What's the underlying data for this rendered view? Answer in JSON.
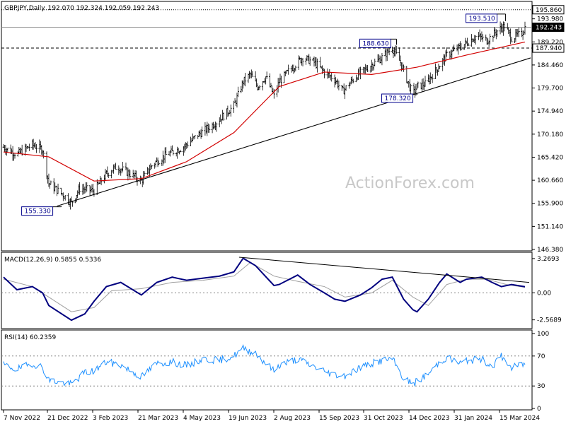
{
  "header": {
    "symbol": "GBPJPY,Daily",
    "ohlc": "192.070 192.324 192.059 192.243",
    "watermark": "ActionForex.com"
  },
  "chart_data": [
    {
      "type": "candlestick",
      "title": "GBPJPY,Daily  192.070 192.324 192.059 192.243",
      "ylim": [
        146.38,
        196.5
      ],
      "y_ticks": [
        "193.980",
        "189.220",
        "184.460",
        "179.700",
        "174.940",
        "170.180",
        "165.420",
        "160.660",
        "155.900",
        "151.140",
        "146.380"
      ],
      "x_ticks": [
        "7 Nov 2022",
        "21 Dec 2022",
        "3 Feb 2023",
        "21 Mar 2023",
        "4 May 2023",
        "19 Jun 2023",
        "2 Aug 2023",
        "15 Sep 2023",
        "31 Oct 2023",
        "14 Dec 2023",
        "31 Jan 2024",
        "15 Mar 2024"
      ],
      "close_path": [
        [
          "2022-11-07",
          167.5
        ],
        [
          "2022-11-20",
          166.0
        ],
        [
          "2022-12-05",
          168.0
        ],
        [
          "2022-12-15",
          167.0
        ],
        [
          "2022-12-21",
          160.0
        ],
        [
          "2023-01-05",
          157.5
        ],
        [
          "2023-01-12",
          156.0
        ],
        [
          "2023-01-20",
          159.0
        ],
        [
          "2023-02-03",
          158.5
        ],
        [
          "2023-02-15",
          162.0
        ],
        [
          "2023-02-25",
          163.5
        ],
        [
          "2023-03-10",
          162.0
        ],
        [
          "2023-03-21",
          160.5
        ],
        [
          "2023-04-01",
          164.0
        ],
        [
          "2023-04-15",
          166.0
        ],
        [
          "2023-05-01",
          167.5
        ],
        [
          "2023-05-15",
          170.0
        ],
        [
          "2023-06-01",
          172.5
        ],
        [
          "2023-06-19",
          176.0
        ],
        [
          "2023-06-28",
          181.0
        ],
        [
          "2023-07-05",
          182.5
        ],
        [
          "2023-07-12",
          180.0
        ],
        [
          "2023-07-20",
          182.0
        ],
        [
          "2023-07-28",
          178.0
        ],
        [
          "2023-08-02",
          181.0
        ],
        [
          "2023-08-15",
          184.0
        ],
        [
          "2023-08-25",
          186.0
        ],
        [
          "2023-09-05",
          185.0
        ],
        [
          "2023-09-15",
          183.0
        ],
        [
          "2023-09-25",
          181.5
        ],
        [
          "2023-10-03",
          179.0
        ],
        [
          "2023-10-15",
          182.0
        ],
        [
          "2023-10-31",
          184.5
        ],
        [
          "2023-11-10",
          186.0
        ],
        [
          "2023-11-20",
          188.0
        ],
        [
          "2023-11-28",
          185.0
        ],
        [
          "2023-12-05",
          181.0
        ],
        [
          "2023-12-10",
          178.32
        ],
        [
          "2023-12-14",
          180.0
        ],
        [
          "2023-12-22",
          180.5
        ],
        [
          "2024-01-02",
          183.5
        ],
        [
          "2024-01-12",
          186.5
        ],
        [
          "2024-01-20",
          187.5
        ],
        [
          "2024-01-31",
          189.0
        ],
        [
          "2024-02-10",
          190.5
        ],
        [
          "2024-02-20",
          189.5
        ],
        [
          "2024-03-01",
          191.5
        ],
        [
          "2024-03-08",
          192.5
        ],
        [
          "2024-03-15",
          190.0
        ],
        [
          "2024-03-25",
          191.0
        ],
        [
          "2024-03-28",
          192.24
        ]
      ],
      "sma_path": [
        [
          "2022-11-07",
          166.5
        ],
        [
          "2022-12-21",
          165.5
        ],
        [
          "2023-02-03",
          160.5
        ],
        [
          "2023-03-21",
          161.0
        ],
        [
          "2023-05-04",
          164.5
        ],
        [
          "2023-06-19",
          170.5
        ],
        [
          "2023-08-02",
          180.0
        ],
        [
          "2023-09-15",
          183.0
        ],
        [
          "2023-10-31",
          182.5
        ],
        [
          "2023-12-14",
          184.0
        ],
        [
          "2024-01-31",
          186.5
        ],
        [
          "2024-03-28",
          189.2
        ]
      ],
      "trendline": [
        [
          "2022-12-29",
          155.33
        ],
        [
          "2024-03-28",
          185.7
        ]
      ],
      "horizontal_lines": [
        {
          "label": "195.860",
          "value": 195.86,
          "style": "dotted"
        },
        {
          "label": "192.243",
          "value": 192.243,
          "style": "solid",
          "current": true
        },
        {
          "label": "187.940",
          "value": 187.94,
          "style": "dashed"
        }
      ],
      "annotations": [
        {
          "text": "155.330",
          "x": "2022-12-29",
          "value": 155.33
        },
        {
          "text": "188.630",
          "x": "2023-11-20",
          "value": 188.63
        },
        {
          "text": "178.320",
          "x": "2023-12-10",
          "value": 178.32
        },
        {
          "text": "193.510",
          "x": "2024-03-05",
          "value": 193.51
        }
      ],
      "series": [
        {
          "name": "GBPJPY",
          "color": "#000000"
        },
        {
          "color": "#d20000"
        }
      ]
    },
    {
      "type": "line",
      "title": "MACD(12,26,9) 0.5855 0.5336",
      "ylim": [
        -3.2,
        3.6
      ],
      "y_ticks": [
        "3.2693",
        "0.00",
        "-2.5689"
      ],
      "zero": 0.0,
      "series": [
        {
          "color": "#00007f",
          "path": [
            [
              "2022-11-07",
              1.5
            ],
            [
              "2022-11-20",
              0.3
            ],
            [
              "2022-12-05",
              0.6
            ],
            [
              "2022-12-15",
              0.0
            ],
            [
              "2022-12-21",
              -1.2
            ],
            [
              "2023-01-12",
              -2.6
            ],
            [
              "2023-01-25",
              -2.0
            ],
            [
              "2023-02-03",
              -0.8
            ],
            [
              "2023-02-15",
              0.6
            ],
            [
              "2023-03-01",
              1.0
            ],
            [
              "2023-03-21",
              -0.2
            ],
            [
              "2023-04-05",
              1.0
            ],
            [
              "2023-04-20",
              1.5
            ],
            [
              "2023-05-04",
              1.2
            ],
            [
              "2023-05-20",
              1.4
            ],
            [
              "2023-06-05",
              1.6
            ],
            [
              "2023-06-19",
              2.0
            ],
            [
              "2023-06-28",
              3.3
            ],
            [
              "2023-07-10",
              2.6
            ],
            [
              "2023-07-28",
              0.7
            ],
            [
              "2023-08-02",
              0.8
            ],
            [
              "2023-08-20",
              1.7
            ],
            [
              "2023-09-01",
              0.8
            ],
            [
              "2023-09-15",
              0.0
            ],
            [
              "2023-09-25",
              -0.6
            ],
            [
              "2023-10-05",
              -0.8
            ],
            [
              "2023-10-20",
              -0.2
            ],
            [
              "2023-10-31",
              0.5
            ],
            [
              "2023-11-10",
              1.3
            ],
            [
              "2023-11-20",
              1.5
            ],
            [
              "2023-12-01",
              -0.6
            ],
            [
              "2023-12-10",
              -1.6
            ],
            [
              "2023-12-14",
              -1.8
            ],
            [
              "2023-12-25",
              -0.6
            ],
            [
              "2024-01-05",
              1.0
            ],
            [
              "2024-01-12",
              1.8
            ],
            [
              "2024-01-25",
              1.0
            ],
            [
              "2024-01-31",
              1.3
            ],
            [
              "2024-02-15",
              1.5
            ],
            [
              "2024-02-25",
              1.0
            ],
            [
              "2024-03-05",
              0.6
            ],
            [
              "2024-03-15",
              0.8
            ],
            [
              "2024-03-28",
              0.59
            ]
          ]
        },
        {
          "color": "#a0a0a0",
          "path": [
            [
              "2022-11-07",
              1.3
            ],
            [
              "2022-12-05",
              0.6
            ],
            [
              "2022-12-21",
              -0.4
            ],
            [
              "2023-01-12",
              -1.8
            ],
            [
              "2023-02-03",
              -1.4
            ],
            [
              "2023-02-20",
              0.2
            ],
            [
              "2023-03-21",
              0.4
            ],
            [
              "2023-04-20",
              1.0
            ],
            [
              "2023-05-20",
              1.2
            ],
            [
              "2023-06-19",
              1.6
            ],
            [
              "2023-07-05",
              2.9
            ],
            [
              "2023-07-28",
              1.6
            ],
            [
              "2023-08-20",
              1.1
            ],
            [
              "2023-09-15",
              0.6
            ],
            [
              "2023-10-05",
              -0.4
            ],
            [
              "2023-10-31",
              0.0
            ],
            [
              "2023-11-20",
              1.2
            ],
            [
              "2023-12-10",
              -0.4
            ],
            [
              "2023-12-25",
              -1.2
            ],
            [
              "2024-01-12",
              0.8
            ],
            [
              "2024-01-31",
              1.3
            ],
            [
              "2024-02-20",
              1.3
            ],
            [
              "2024-03-10",
              0.8
            ],
            [
              "2024-03-28",
              0.53
            ]
          ]
        }
      ],
      "trendline": [
        [
          "2023-06-24",
          3.4
        ],
        [
          "2024-03-28",
          1.0
        ]
      ]
    },
    {
      "type": "line",
      "title": "RSI(14) 60.2359",
      "ylim": [
        0,
        100
      ],
      "y_ticks": [
        "100",
        "70",
        "30",
        "0"
      ],
      "levels": [
        70,
        30
      ],
      "series": [
        {
          "color": "#1e90ff",
          "path": [
            [
              "2022-11-07",
              58
            ],
            [
              "2022-11-20",
              52
            ],
            [
              "2022-12-05",
              60
            ],
            [
              "2022-12-15",
              55
            ],
            [
              "2022-12-21",
              38
            ],
            [
              "2023-01-12",
              32
            ],
            [
              "2023-01-25",
              48
            ],
            [
              "2023-02-03",
              50
            ],
            [
              "2023-02-15",
              62
            ],
            [
              "2023-03-01",
              58
            ],
            [
              "2023-03-21",
              42
            ],
            [
              "2023-04-05",
              60
            ],
            [
              "2023-04-20",
              62
            ],
            [
              "2023-05-04",
              57
            ],
            [
              "2023-05-20",
              66
            ],
            [
              "2023-06-05",
              64
            ],
            [
              "2023-06-19",
              70
            ],
            [
              "2023-06-28",
              80
            ],
            [
              "2023-07-10",
              74
            ],
            [
              "2023-07-28",
              50
            ],
            [
              "2023-08-02",
              58
            ],
            [
              "2023-08-20",
              66
            ],
            [
              "2023-09-01",
              58
            ],
            [
              "2023-09-15",
              50
            ],
            [
              "2023-09-25",
              45
            ],
            [
              "2023-10-05",
              44
            ],
            [
              "2023-10-20",
              55
            ],
            [
              "2023-10-31",
              60
            ],
            [
              "2023-11-10",
              64
            ],
            [
              "2023-11-20",
              66
            ],
            [
              "2023-12-01",
              40
            ],
            [
              "2023-12-10",
              33
            ],
            [
              "2023-12-14",
              36
            ],
            [
              "2023-12-25",
              46
            ],
            [
              "2024-01-05",
              62
            ],
            [
              "2024-01-12",
              68
            ],
            [
              "2024-01-25",
              60
            ],
            [
              "2024-01-31",
              64
            ],
            [
              "2024-02-15",
              66
            ],
            [
              "2024-02-25",
              56
            ],
            [
              "2024-03-05",
              70
            ],
            [
              "2024-03-15",
              54
            ],
            [
              "2024-03-28",
              60.24
            ]
          ]
        }
      ]
    }
  ]
}
